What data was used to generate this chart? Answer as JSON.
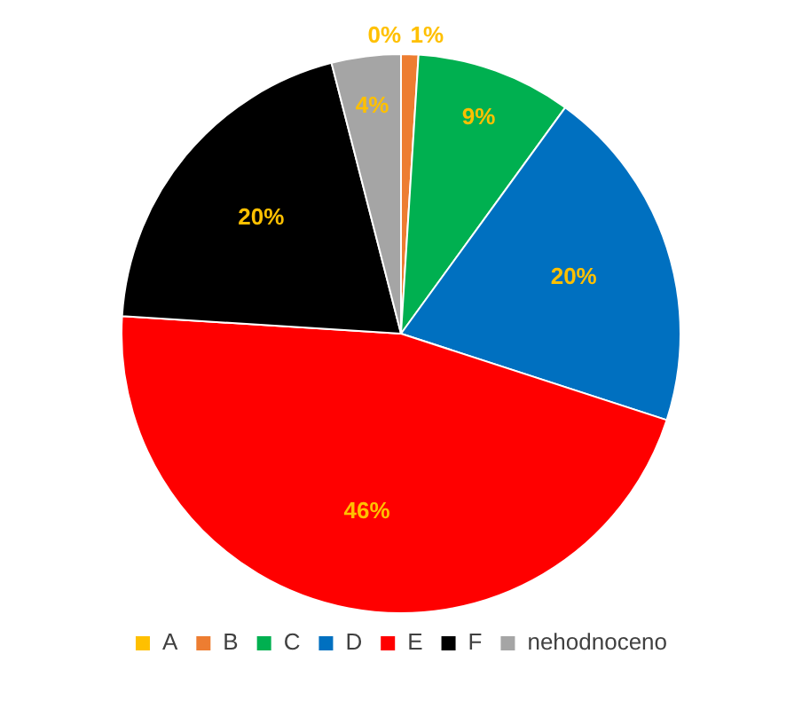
{
  "chart_data": {
    "type": "pie",
    "categories": [
      "A",
      "B",
      "C",
      "D",
      "E",
      "F",
      "nehodnoceno"
    ],
    "values": [
      0,
      1,
      9,
      20,
      46,
      20,
      4
    ],
    "colors": [
      "#ffc000",
      "#ed7d31",
      "#00b050",
      "#0070c0",
      "#ff0000",
      "#000000",
      "#a5a5a5"
    ],
    "value_labels": [
      "0%",
      "1%",
      "9%",
      "20%",
      "46%",
      "20%",
      "4%"
    ],
    "legend": "bottom"
  }
}
